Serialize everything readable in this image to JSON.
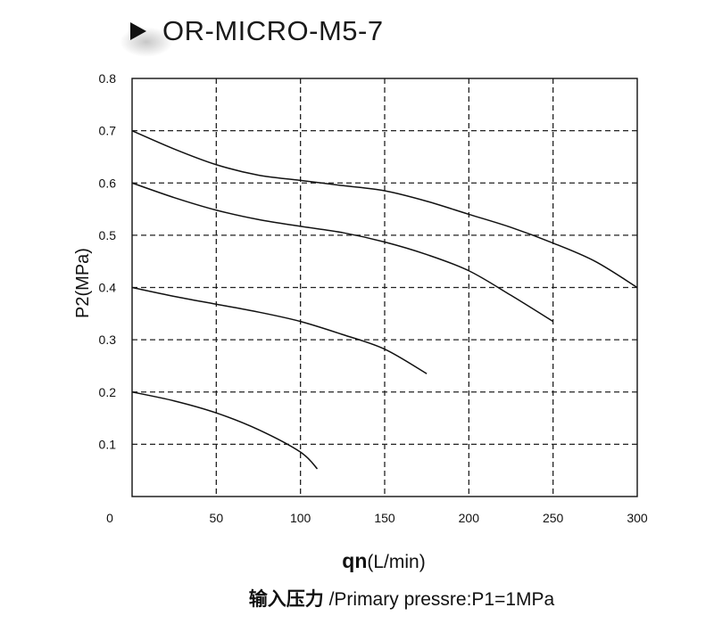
{
  "title": "OR-MICRO-M5-7",
  "xlabel_main": "qn",
  "xlabel_unit": "(L/min)",
  "subtitle_cn": "输入压力",
  "subtitle_en": " /Primary pressre:P1=1MPa",
  "chart_data": {
    "type": "line",
    "title": "OR-MICRO-M5-7",
    "xlabel": "qn(L/min)",
    "ylabel": "P2(MPa)",
    "xlim": [
      0,
      300
    ],
    "ylim": [
      0,
      0.8
    ],
    "x_ticks": [
      0,
      50,
      100,
      150,
      200,
      250,
      300
    ],
    "x_tick_labels": [
      "0",
      "50",
      "100",
      "150",
      "200",
      "250",
      "300"
    ],
    "y_ticks": [
      0.1,
      0.2,
      0.3,
      0.4,
      0.5,
      0.6,
      0.7,
      0.8
    ],
    "y_tick_labels": [
      "0.1",
      "0.2",
      "0.3",
      "0.4",
      "0.5",
      "0.6",
      "0.7",
      "0.8"
    ],
    "grid": true,
    "grid_style": "dashed",
    "line_color": "#111111",
    "series": [
      {
        "x": [
          0,
          25,
          50,
          75,
          100,
          125,
          150,
          175,
          200,
          225,
          250,
          275,
          300
        ],
        "y": [
          0.7,
          0.665,
          0.635,
          0.615,
          0.605,
          0.595,
          0.585,
          0.565,
          0.54,
          0.515,
          0.485,
          0.45,
          0.4
        ]
      },
      {
        "x": [
          0,
          25,
          50,
          75,
          100,
          125,
          150,
          175,
          200,
          225,
          250
        ],
        "y": [
          0.6,
          0.572,
          0.548,
          0.53,
          0.517,
          0.505,
          0.487,
          0.463,
          0.432,
          0.385,
          0.335
        ]
      },
      {
        "x": [
          0,
          25,
          50,
          75,
          100,
          125,
          150,
          175
        ],
        "y": [
          0.4,
          0.383,
          0.368,
          0.353,
          0.335,
          0.31,
          0.282,
          0.235
        ]
      },
      {
        "x": [
          0,
          25,
          50,
          75,
          100,
          110
        ],
        "y": [
          0.2,
          0.183,
          0.16,
          0.128,
          0.085,
          0.053
        ]
      }
    ]
  }
}
